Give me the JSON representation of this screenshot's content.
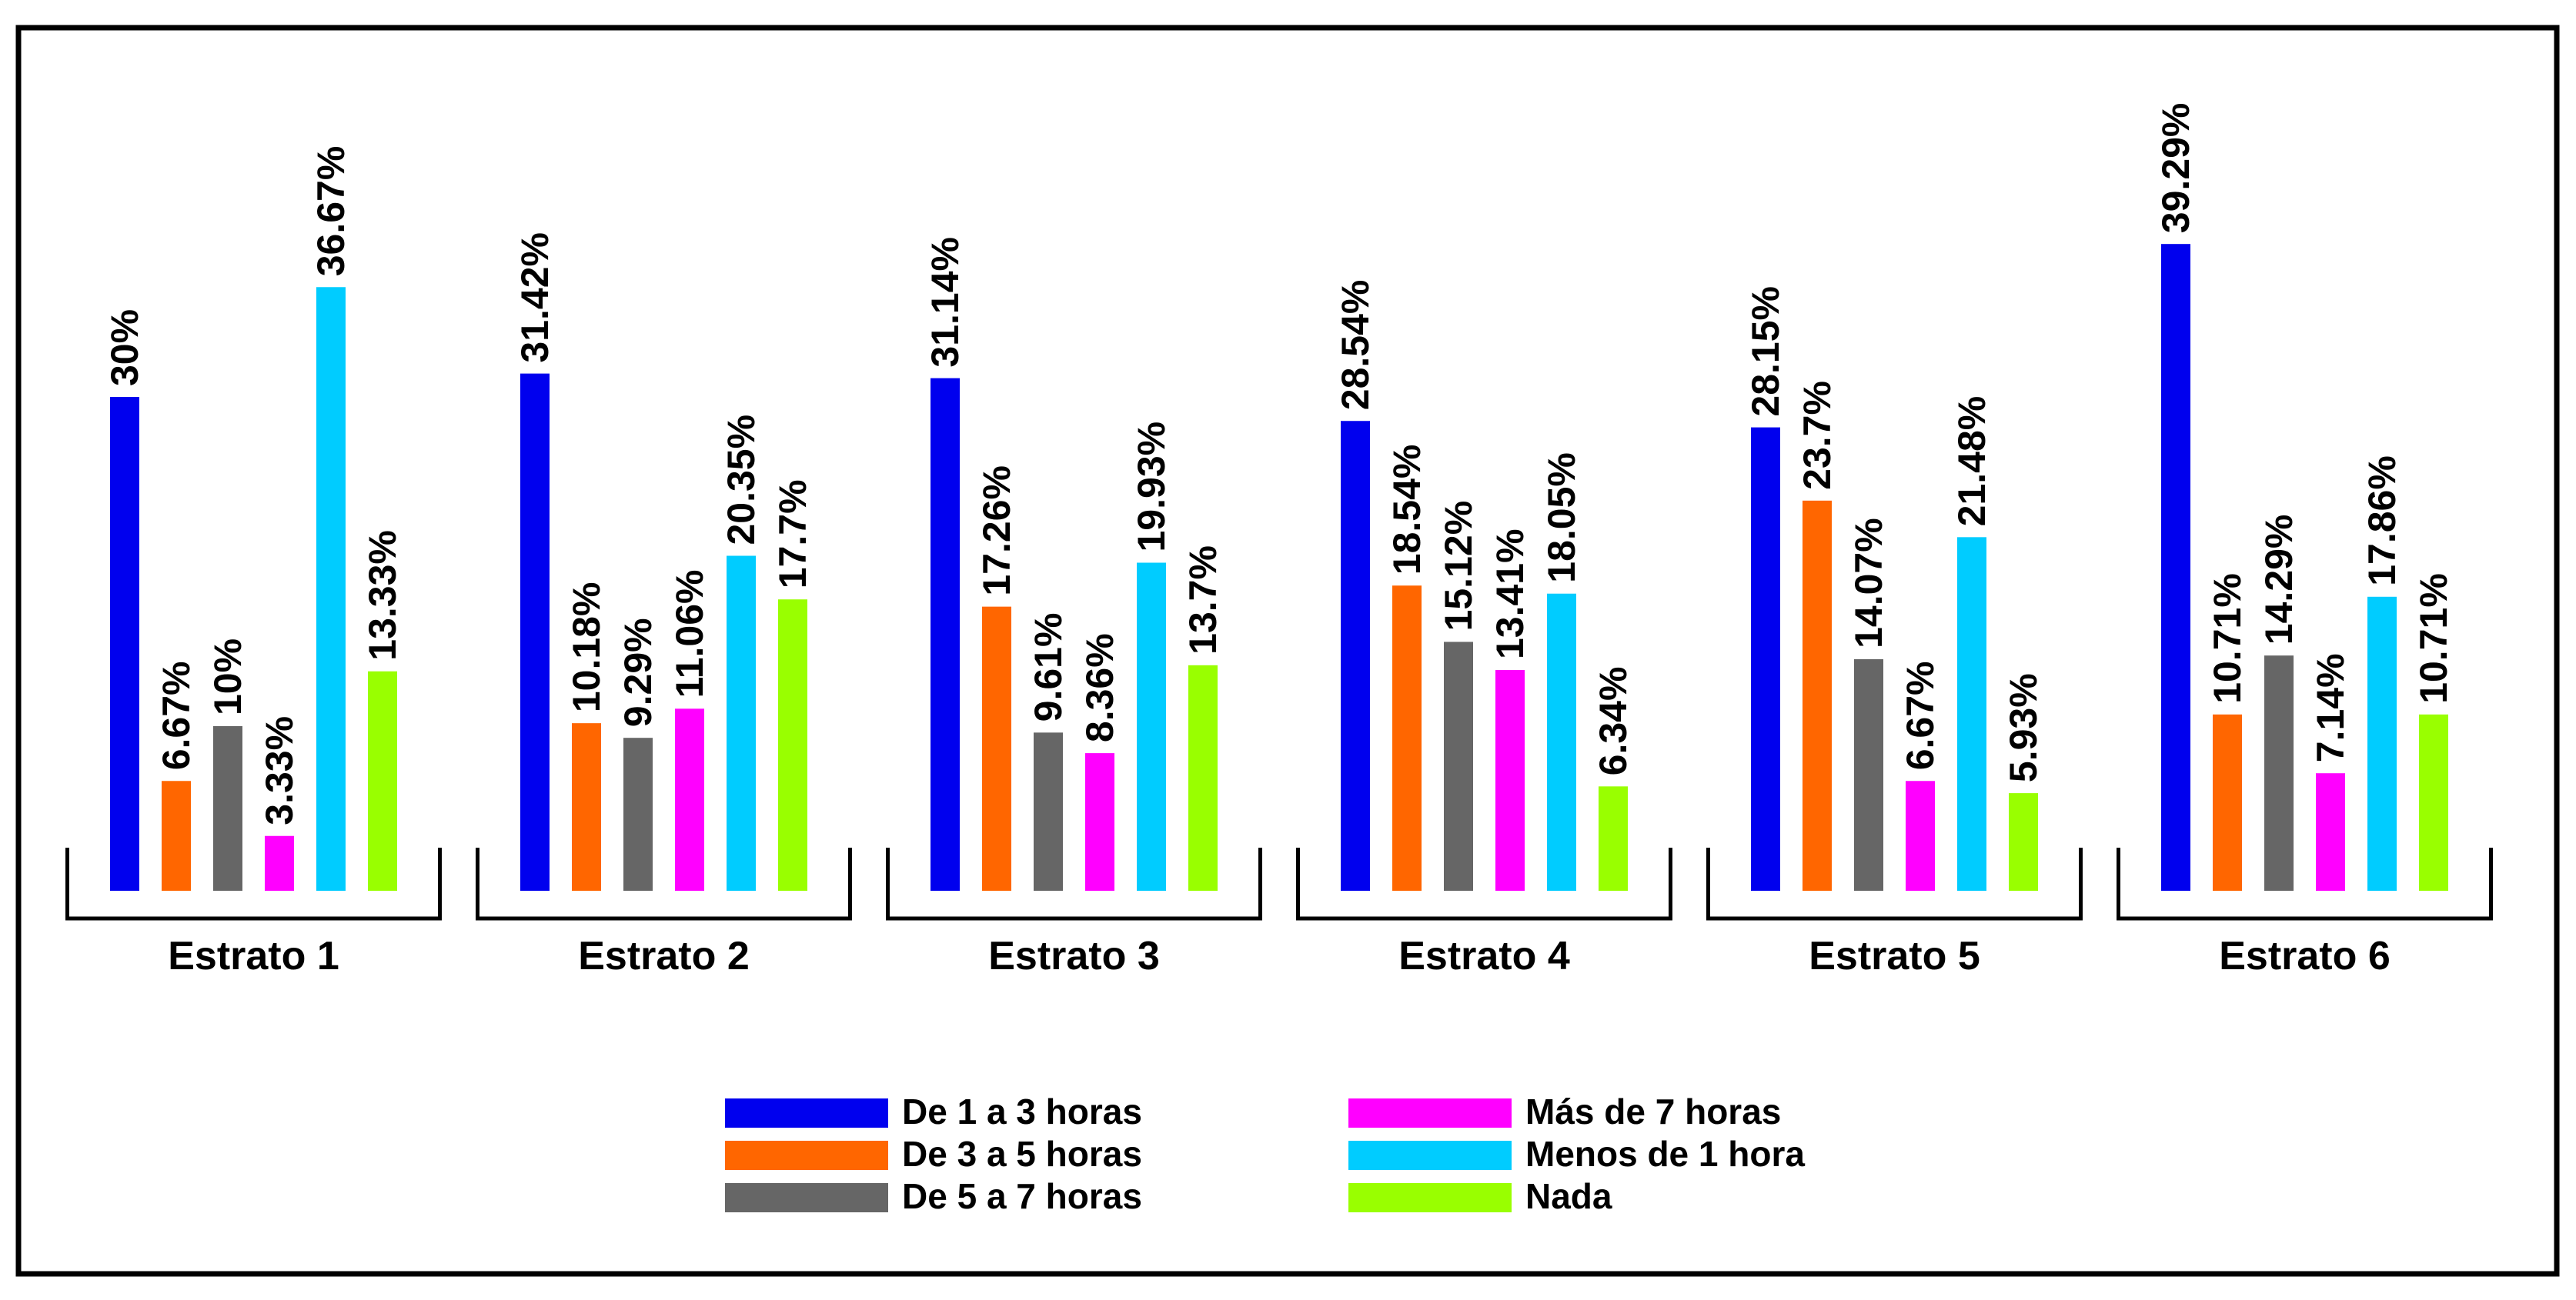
{
  "chart_data": {
    "type": "bar",
    "categories": [
      "Estrato 1",
      "Estrato 2",
      "Estrato 3",
      "Estrato 4",
      "Estrato 5",
      "Estrato 6"
    ],
    "series": [
      {
        "name": "De 1 a 3 horas",
        "color": "#0000ee",
        "values": [
          30,
          31.42,
          31.14,
          28.54,
          28.15,
          39.29
        ],
        "labels": [
          "30%",
          "31.42%",
          "31.14%",
          "28.54%",
          "28.15%",
          "39.29%"
        ]
      },
      {
        "name": "De 3 a 5 horas",
        "color": "#ff6600",
        "values": [
          6.67,
          10.18,
          17.26,
          18.54,
          23.7,
          10.71
        ],
        "labels": [
          "6.67%",
          "10.18%",
          "17.26%",
          "18.54%",
          "23.7%",
          "10.71%"
        ]
      },
      {
        "name": "De 5 a 7 horas",
        "color": "#666666",
        "values": [
          10,
          9.29,
          9.61,
          15.12,
          14.07,
          14.29
        ],
        "labels": [
          "10%",
          "9.29%",
          "9.61%",
          "15.12%",
          "14.07%",
          "14.29%"
        ]
      },
      {
        "name": "Más de 7 horas",
        "color": "#ff00ff",
        "values": [
          3.33,
          11.06,
          8.36,
          13.41,
          6.67,
          7.14
        ],
        "labels": [
          "3.33%",
          "11.06%",
          "8.36%",
          "13.41%",
          "6.67%",
          "7.14%"
        ]
      },
      {
        "name": "Menos de 1 hora",
        "color": "#00ccff",
        "values": [
          36.67,
          20.35,
          19.93,
          18.05,
          21.48,
          17.86
        ],
        "labels": [
          "36.67%",
          "20.35%",
          "19.93%",
          "18.05%",
          "21.48%",
          "17.86%"
        ]
      },
      {
        "name": "Nada",
        "color": "#99ff00",
        "values": [
          13.33,
          17.7,
          13.7,
          6.34,
          5.93,
          10.71
        ],
        "labels": [
          "13.33%",
          "17.7%",
          "13.7%",
          "6.34%",
          "5.93%",
          "10.71%"
        ]
      }
    ],
    "ylim": [
      0,
      40
    ],
    "grid": false,
    "legend_position": "bottom-center",
    "title": "",
    "xlabel": "",
    "ylabel": ""
  }
}
